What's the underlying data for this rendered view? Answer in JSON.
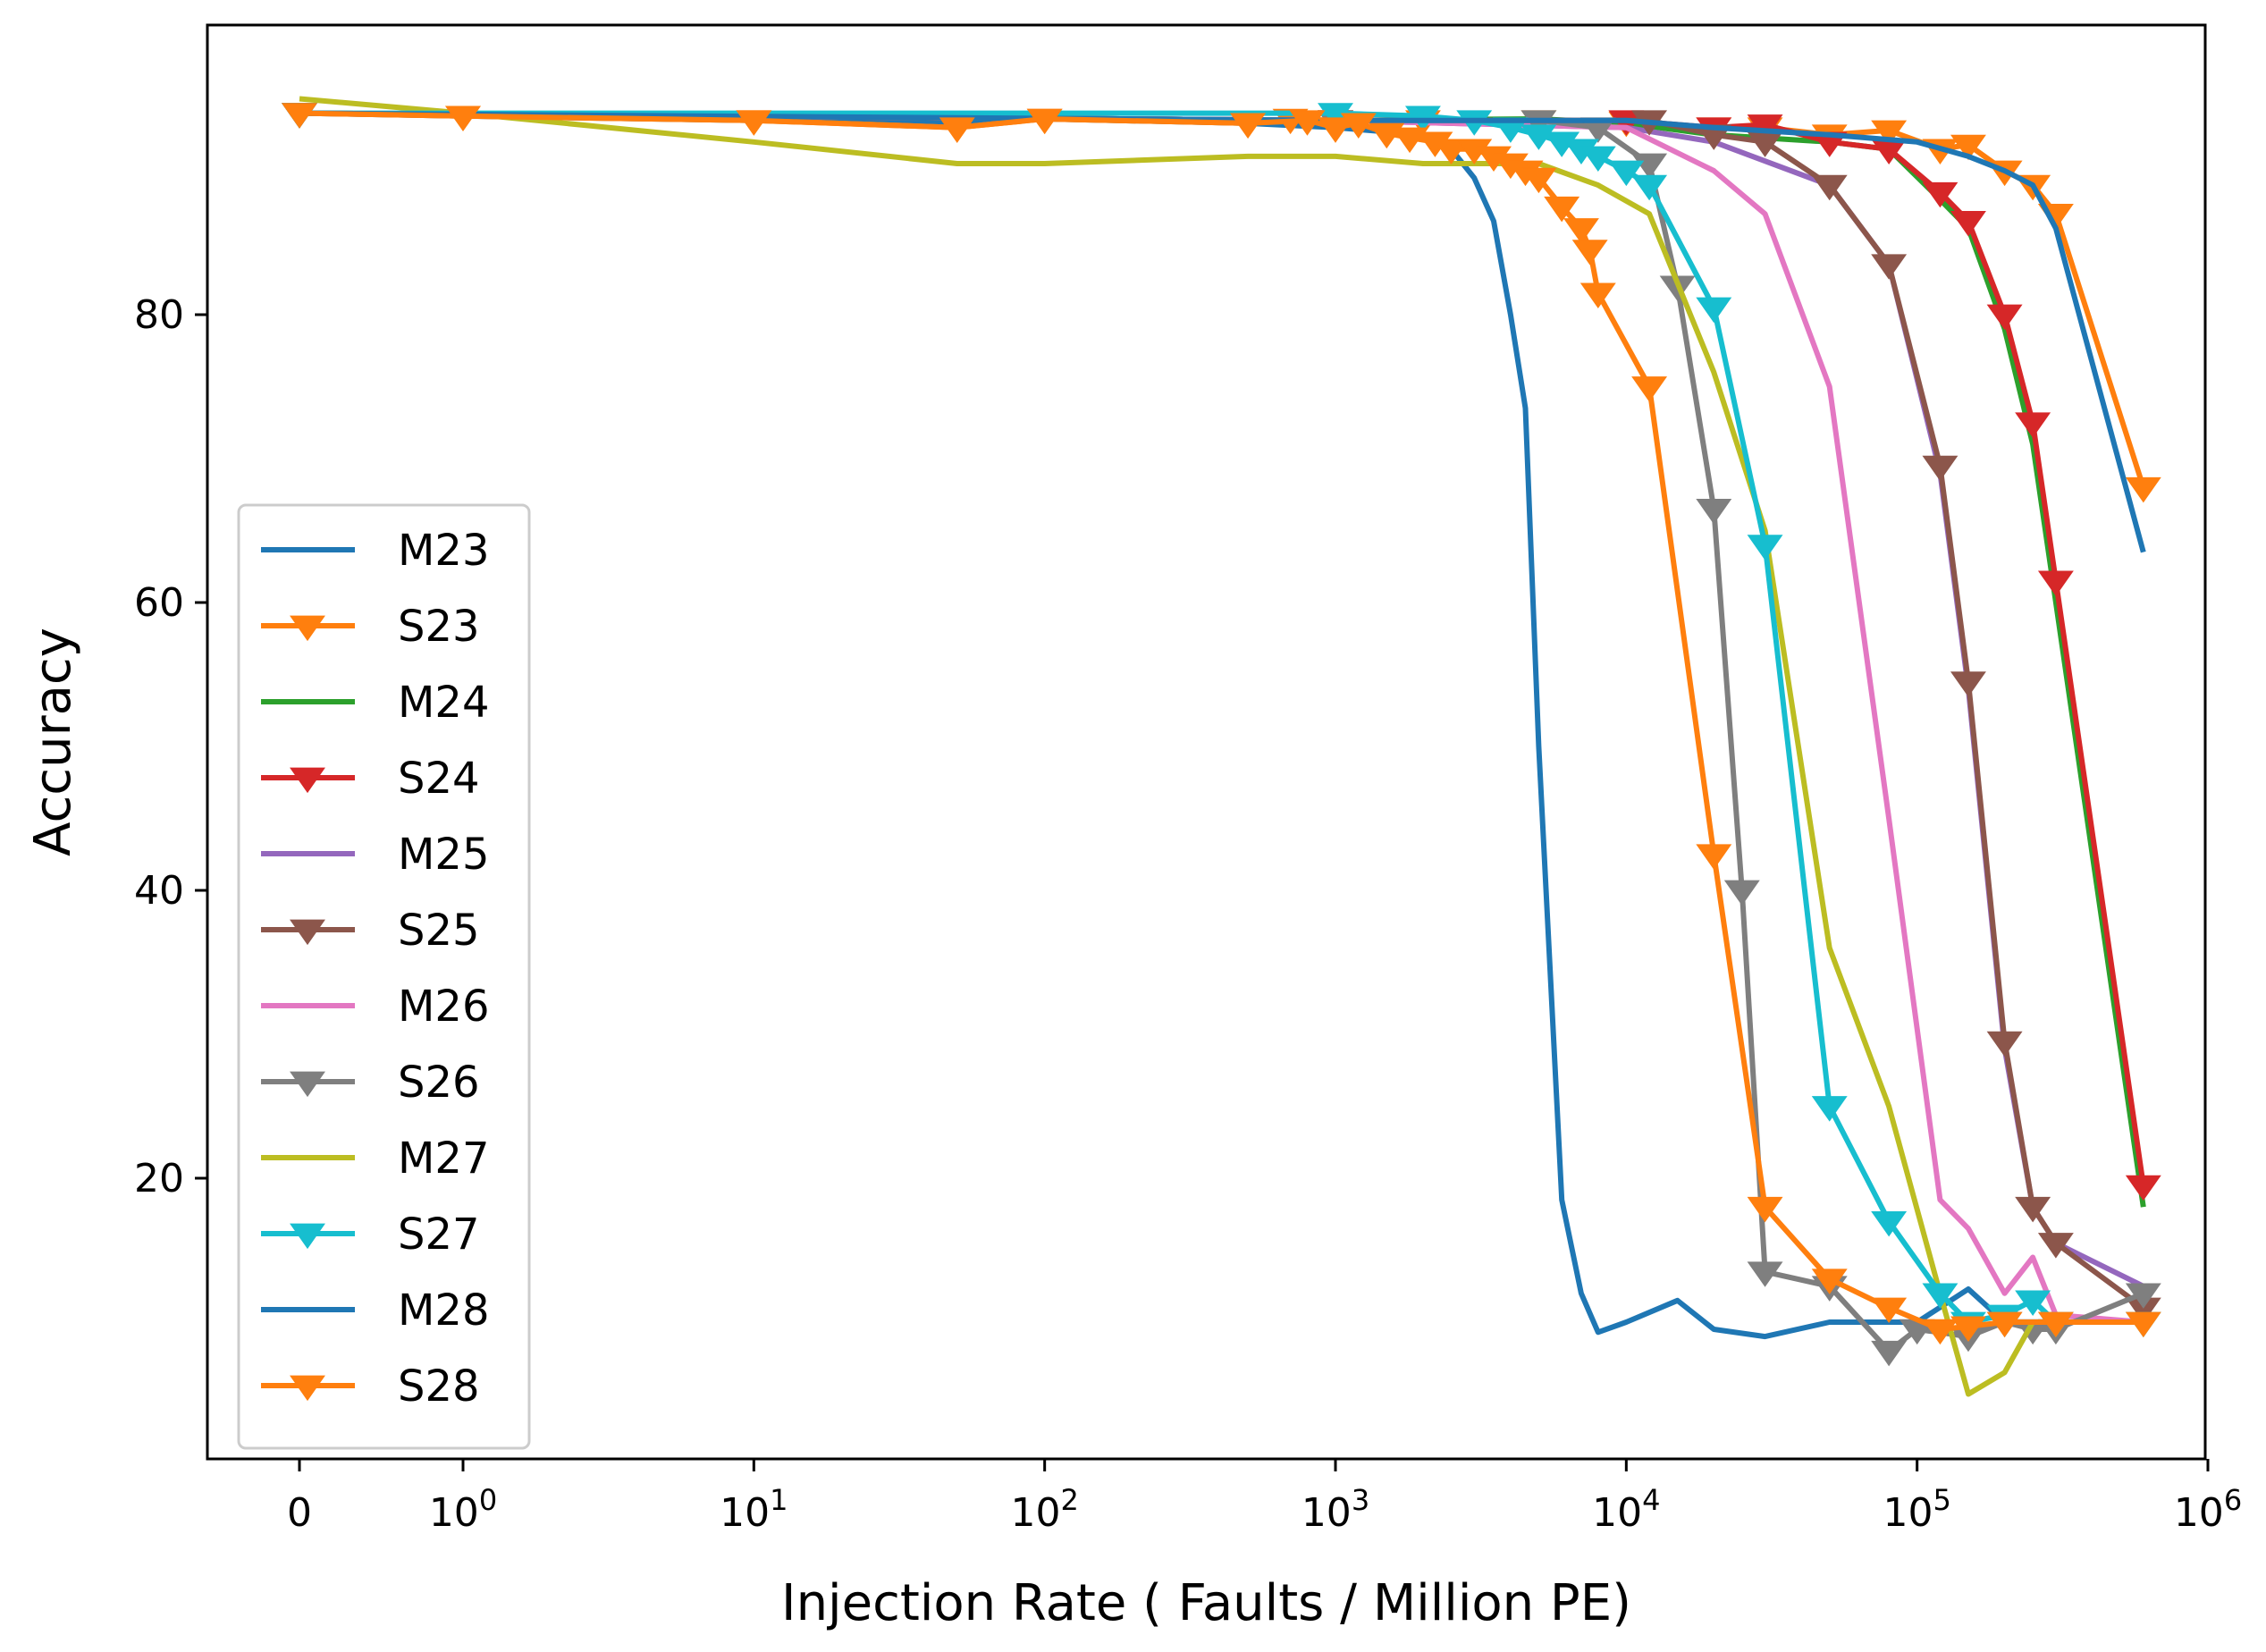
{
  "chart_data": {
    "type": "line",
    "xlabel": "Injection Rate ( Faults / Million PE)",
    "ylabel": "Accuracy",
    "xscale": "symlog",
    "xlim": [
      -0.5,
      1000000
    ],
    "ylim": [
      0,
      100
    ],
    "legend_loc": "lower-left",
    "grid": false,
    "x_ticks": [
      {
        "value": 0,
        "label": "0",
        "sup": ""
      },
      {
        "value": 1,
        "label": "10",
        "sup": "0"
      },
      {
        "value": 10,
        "label": "10",
        "sup": "1"
      },
      {
        "value": 100,
        "label": "10",
        "sup": "2"
      },
      {
        "value": 1000,
        "label": "10",
        "sup": "3"
      },
      {
        "value": 10000,
        "label": "10",
        "sup": "4"
      },
      {
        "value": 100000,
        "label": "10",
        "sup": "5"
      },
      {
        "value": 1000000,
        "label": "10",
        "sup": "6"
      }
    ],
    "y_ticks": [
      {
        "value": 20,
        "label": "20"
      },
      {
        "value": 40,
        "label": "40"
      },
      {
        "value": 60,
        "label": "60"
      },
      {
        "value": 80,
        "label": "80"
      }
    ],
    "series": [
      {
        "name": "M23",
        "color": "#1f77b4",
        "marker": "none",
        "points": [
          [
            0,
            94
          ],
          [
            1,
            93.8
          ],
          [
            10,
            93.5
          ],
          [
            50,
            93.3
          ],
          [
            100,
            93.6
          ],
          [
            500,
            93.3
          ],
          [
            1000,
            93
          ],
          [
            2000,
            92.5
          ],
          [
            2500,
            91.5
          ],
          [
            3000,
            89.5
          ],
          [
            3500,
            86.5
          ],
          [
            4000,
            80
          ],
          [
            4500,
            73.5
          ],
          [
            5000,
            50
          ],
          [
            6000,
            18.5
          ],
          [
            7000,
            12
          ],
          [
            8000,
            9.3
          ],
          [
            10000,
            10
          ],
          [
            15000,
            11.5
          ],
          [
            20000,
            9.5
          ],
          [
            30000,
            9
          ],
          [
            50000,
            10
          ],
          [
            100000,
            10
          ],
          [
            150000,
            12.3
          ],
          [
            200000,
            10
          ],
          [
            300000,
            10
          ],
          [
            600000,
            10
          ]
        ]
      },
      {
        "name": "S23",
        "color": "#ff7f0e",
        "marker": "tri_down",
        "points": [
          [
            0,
            94
          ],
          [
            1,
            93.8
          ],
          [
            10,
            93.5
          ],
          [
            50,
            93
          ],
          [
            100,
            93.6
          ],
          [
            500,
            93.3
          ],
          [
            700,
            93.6
          ],
          [
            1000,
            93.5
          ],
          [
            2000,
            93.5
          ],
          [
            5000,
            93.5
          ],
          [
            10000,
            93.4
          ],
          [
            20000,
            93
          ],
          [
            30000,
            93
          ],
          [
            50000,
            92.5
          ],
          [
            80000,
            92.8
          ],
          [
            120000,
            91.5
          ],
          [
            150000,
            91.8
          ],
          [
            200000,
            90
          ],
          [
            250000,
            89
          ],
          [
            300000,
            87
          ],
          [
            600000,
            68
          ]
        ]
      },
      {
        "name": "M24",
        "color": "#2ca02c",
        "marker": "none",
        "points": [
          [
            0,
            94
          ],
          [
            1000,
            93.5
          ],
          [
            5000,
            93.6
          ],
          [
            10000,
            93.3
          ],
          [
            20000,
            92.5
          ],
          [
            50000,
            92
          ],
          [
            80000,
            91.5
          ],
          [
            120000,
            88
          ],
          [
            150000,
            86
          ],
          [
            200000,
            79
          ],
          [
            250000,
            71
          ],
          [
            300000,
            60
          ],
          [
            600000,
            18
          ]
        ]
      },
      {
        "name": "S24",
        "color": "#d62728",
        "marker": "tri_down",
        "points": [
          [
            0,
            94
          ],
          [
            1000,
            93.5
          ],
          [
            10000,
            93.5
          ],
          [
            20000,
            93
          ],
          [
            30000,
            93.2
          ],
          [
            50000,
            92
          ],
          [
            80000,
            91.5
          ],
          [
            120000,
            88.5
          ],
          [
            150000,
            86.5
          ],
          [
            200000,
            80
          ],
          [
            250000,
            72.5
          ],
          [
            300000,
            61.5
          ],
          [
            600000,
            19.5
          ]
        ]
      },
      {
        "name": "M25",
        "color": "#9467bd",
        "marker": "none",
        "points": [
          [
            0,
            94
          ],
          [
            1000,
            93.5
          ],
          [
            10000,
            93
          ],
          [
            20000,
            92
          ],
          [
            50000,
            89
          ],
          [
            80000,
            83.5
          ],
          [
            120000,
            69
          ],
          [
            150000,
            54
          ],
          [
            200000,
            29
          ],
          [
            250000,
            18
          ],
          [
            300000,
            15.5
          ],
          [
            600000,
            12.5
          ]
        ]
      },
      {
        "name": "S25",
        "color": "#8c564b",
        "marker": "tri_down",
        "points": [
          [
            0,
            94
          ],
          [
            1000,
            93.5
          ],
          [
            12000,
            93.5
          ],
          [
            20000,
            92.5
          ],
          [
            30000,
            92
          ],
          [
            50000,
            89
          ],
          [
            80000,
            83.5
          ],
          [
            120000,
            69.5
          ],
          [
            150000,
            54.5
          ],
          [
            200000,
            29.5
          ],
          [
            250000,
            18
          ],
          [
            300000,
            15.5
          ],
          [
            600000,
            11
          ]
        ]
      },
      {
        "name": "M26",
        "color": "#e377c2",
        "marker": "none",
        "points": [
          [
            0,
            94
          ],
          [
            1000,
            93.5
          ],
          [
            10000,
            93
          ],
          [
            20000,
            90
          ],
          [
            30000,
            87
          ],
          [
            50000,
            75
          ],
          [
            80000,
            45
          ],
          [
            120000,
            18.5
          ],
          [
            150000,
            16.5
          ],
          [
            200000,
            12
          ],
          [
            250000,
            14.5
          ],
          [
            300000,
            10.5
          ],
          [
            600000,
            10
          ]
        ]
      },
      {
        "name": "S26",
        "color": "#7f7f7f",
        "marker": "tri_down",
        "points": [
          [
            0,
            94
          ],
          [
            1000,
            93.5
          ],
          [
            5000,
            93.5
          ],
          [
            8000,
            93
          ],
          [
            12000,
            90.5
          ],
          [
            15000,
            82
          ],
          [
            20000,
            66.5
          ],
          [
            25000,
            40
          ],
          [
            30000,
            13.5
          ],
          [
            50000,
            12.5
          ],
          [
            80000,
            8
          ],
          [
            100000,
            9.5
          ],
          [
            150000,
            9
          ],
          [
            200000,
            10
          ],
          [
            250000,
            9.5
          ],
          [
            300000,
            9.5
          ],
          [
            600000,
            12
          ]
        ]
      },
      {
        "name": "M27",
        "color": "#bcbd22",
        "marker": "none",
        "points": [
          [
            0,
            95
          ],
          [
            1,
            94
          ],
          [
            10,
            92
          ],
          [
            50,
            90.5
          ],
          [
            100,
            90.5
          ],
          [
            500,
            91
          ],
          [
            1000,
            91
          ],
          [
            2000,
            90.5
          ],
          [
            5000,
            90.5
          ],
          [
            8000,
            89
          ],
          [
            12000,
            87
          ],
          [
            20000,
            76
          ],
          [
            30000,
            65
          ],
          [
            50000,
            36
          ],
          [
            80000,
            25
          ],
          [
            120000,
            12
          ],
          [
            150000,
            5
          ],
          [
            200000,
            6.5
          ],
          [
            250000,
            10
          ],
          [
            600000,
            10
          ]
        ]
      },
      {
        "name": "S27",
        "color": "#17becf",
        "marker": "tri_down",
        "points": [
          [
            0,
            94
          ],
          [
            1000,
            94
          ],
          [
            2000,
            93.8
          ],
          [
            3000,
            93.5
          ],
          [
            4000,
            93
          ],
          [
            5000,
            92.5
          ],
          [
            6000,
            92
          ],
          [
            7000,
            91.5
          ],
          [
            8000,
            91
          ],
          [
            10000,
            90
          ],
          [
            12000,
            89
          ],
          [
            20000,
            80.5
          ],
          [
            30000,
            64
          ],
          [
            50000,
            25
          ],
          [
            80000,
            17
          ],
          [
            120000,
            12
          ],
          [
            150000,
            10
          ],
          [
            200000,
            10.5
          ],
          [
            250000,
            11.5
          ],
          [
            300000,
            10
          ],
          [
            600000,
            10
          ]
        ]
      },
      {
        "name": "M28",
        "color": "#1f77b4",
        "marker": "none",
        "points": [
          [
            0,
            94
          ],
          [
            1000,
            93.5
          ],
          [
            10000,
            93.5
          ],
          [
            20000,
            93
          ],
          [
            50000,
            92.5
          ],
          [
            100000,
            92
          ],
          [
            150000,
            91
          ],
          [
            200000,
            90
          ],
          [
            250000,
            89
          ],
          [
            300000,
            86
          ],
          [
            600000,
            63.5
          ]
        ]
      },
      {
        "name": "S28",
        "color": "#ff7f0e",
        "marker": "tri_down",
        "points": [
          [
            0,
            94
          ],
          [
            1,
            93.8
          ],
          [
            10,
            93.5
          ],
          [
            50,
            93
          ],
          [
            100,
            93.6
          ],
          [
            500,
            93.3
          ],
          [
            800,
            93.5
          ],
          [
            1000,
            93
          ],
          [
            1200,
            93.3
          ],
          [
            1500,
            92.6
          ],
          [
            1800,
            92.3
          ],
          [
            2200,
            92
          ],
          [
            2500,
            91.5
          ],
          [
            3000,
            91.5
          ],
          [
            3500,
            91
          ],
          [
            4000,
            90.5
          ],
          [
            4500,
            90
          ],
          [
            5000,
            89.5
          ],
          [
            6000,
            87.5
          ],
          [
            7000,
            86
          ],
          [
            7500,
            84.5
          ],
          [
            8000,
            81.5
          ],
          [
            12000,
            75
          ],
          [
            20000,
            42.5
          ],
          [
            30000,
            18
          ],
          [
            50000,
            13
          ],
          [
            80000,
            11
          ],
          [
            120000,
            9.5
          ],
          [
            150000,
            9.7
          ],
          [
            200000,
            10
          ],
          [
            300000,
            10
          ],
          [
            600000,
            10
          ]
        ]
      }
    ]
  }
}
